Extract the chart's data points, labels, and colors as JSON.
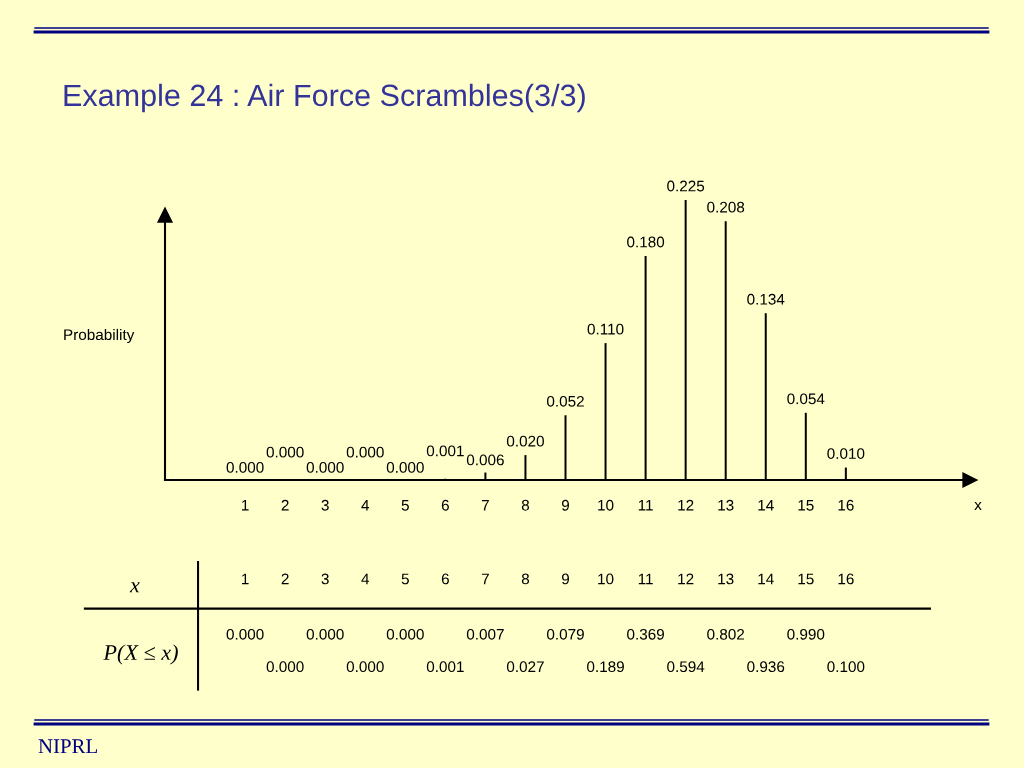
{
  "chart_data": {
    "type": "bar",
    "title": "Example 24 : Air Force Scrambles(3/3)",
    "color": "#000000",
    "categories": [
      "1",
      "2",
      "3",
      "4",
      "5",
      "6",
      "7",
      "8",
      "9",
      "10",
      "11",
      "12",
      "13",
      "14",
      "15",
      "16"
    ],
    "values": [
      0.0,
      0.0,
      0.0,
      0.0,
      0.0,
      0.001,
      0.006,
      0.02,
      0.052,
      0.11,
      0.18,
      0.225,
      0.208,
      0.134,
      0.054,
      0.01
    ],
    "value_labels": [
      "0.000",
      "0.000",
      "0.000",
      "0.000",
      "0.000",
      "0.001",
      "0.006",
      "0.020",
      "0.052",
      "0.110",
      "0.180",
      "0.225",
      "0.208",
      "0.134",
      "0.054",
      "0.010"
    ],
    "grid": false,
    "legend": false,
    "annotations": [
      "Probability",
      "x",
      "x",
      "P(X ≤ x)",
      "0.000",
      "0.000",
      "0.000",
      "0.000",
      "0.000",
      "0.001",
      "0.007",
      "0.027",
      "0.079",
      "0.189",
      "0.369",
      "0.594",
      "0.802",
      "0.936",
      "0.990",
      "0.100",
      "NIPRL"
    ]
  }
}
